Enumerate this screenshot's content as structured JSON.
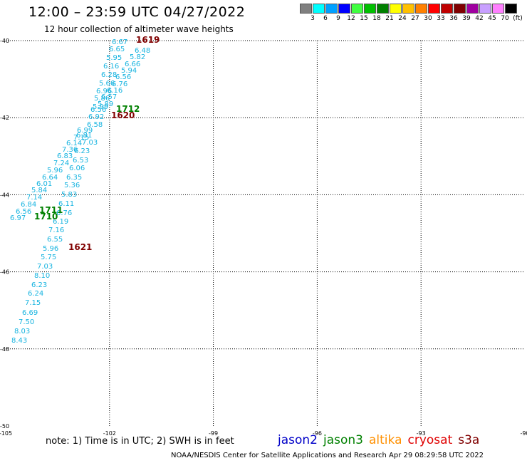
{
  "header": {
    "title": "12:00 – 23:59 UTC 04/27/2022",
    "subtitle": "12 hour collection of altimeter wave heights"
  },
  "colorbar": {
    "colors": [
      "#808080",
      "#00ffff",
      "#00a0ff",
      "#0000ff",
      "#40ff40",
      "#00c000",
      "#008000",
      "#ffff00",
      "#ffc000",
      "#ff8000",
      "#ff0000",
      "#c00000",
      "#800000",
      "#a000a0",
      "#c8a0ff",
      "#ff80ff",
      "#000000"
    ],
    "labels": [
      "3",
      "6",
      "9",
      "12",
      "15",
      "18",
      "21",
      "24",
      "27",
      "30",
      "33",
      "36",
      "39",
      "42",
      "45",
      "70",
      "(ft)"
    ]
  },
  "axes": {
    "lat_labels": [
      "-40",
      "-42",
      "-44",
      "-46",
      "-48",
      "-50"
    ],
    "lon_labels": [
      "-105",
      "-102",
      "-99",
      "-96",
      "-93",
      "-90"
    ]
  },
  "chart_data": {
    "type": "scatter",
    "lat_range": [
      -50,
      -40
    ],
    "lon_range": [
      -105,
      -90
    ],
    "wave_heights_ft": [
      "6.67",
      "6.65",
      "6.48",
      "5.95",
      "5.82",
      "6.66",
      "6.16",
      "5.94",
      "6.28",
      "6.56",
      "5.66",
      "6.76",
      "6.96",
      "6.16",
      "5.86",
      "6.57",
      "5.99",
      "5.89",
      "6.56",
      "6.92",
      "6.58",
      "6.99",
      "6.81",
      "7.15",
      "7.03",
      "6.14",
      "7.36",
      "6.23",
      "6.83",
      "6.53",
      "7.24",
      "6.06",
      "5.96",
      "6.35",
      "6.64",
      "6.01",
      "5.36",
      "5.84",
      "5.83",
      "7.14",
      "6.11",
      "6.84",
      "6.76",
      "6.56",
      "6.97",
      "6.19",
      "7.16",
      "6.55",
      "5.96",
      "5.75",
      "7.03",
      "8.10",
      "6.23",
      "6.24",
      "7.15",
      "6.69",
      "7.50",
      "8.03",
      "8.43"
    ],
    "time_labels": [
      {
        "text": "1619",
        "satellite": "s3a"
      },
      {
        "text": "1712",
        "satellite": "jason3"
      },
      {
        "text": "1620",
        "satellite": "s3a"
      },
      {
        "text": "1711",
        "satellite": "jason3"
      },
      {
        "text": "1710",
        "satellite": "jason3"
      },
      {
        "text": "1621",
        "satellite": "s3a"
      }
    ]
  },
  "footer": {
    "note": "note: 1) Time is in UTC; 2) SWH is in feet",
    "credit": "NOAA/NESDIS Center for Satellite Applications and Research    Apr 29 08:29:58 UTC 2022",
    "satellites": [
      {
        "name": "jason2",
        "color": "#0000c8"
      },
      {
        "name": "jason3",
        "color": "#008000"
      },
      {
        "name": "altika",
        "color": "#ff9000"
      },
      {
        "name": "cryosat",
        "color": "#e00000"
      },
      {
        "name": "s3a",
        "color": "#800000"
      }
    ]
  },
  "colors": {
    "label_cyan": "#18b4e0",
    "jason3": "#008000",
    "s3a": "#800000",
    "grid": "#000000"
  }
}
